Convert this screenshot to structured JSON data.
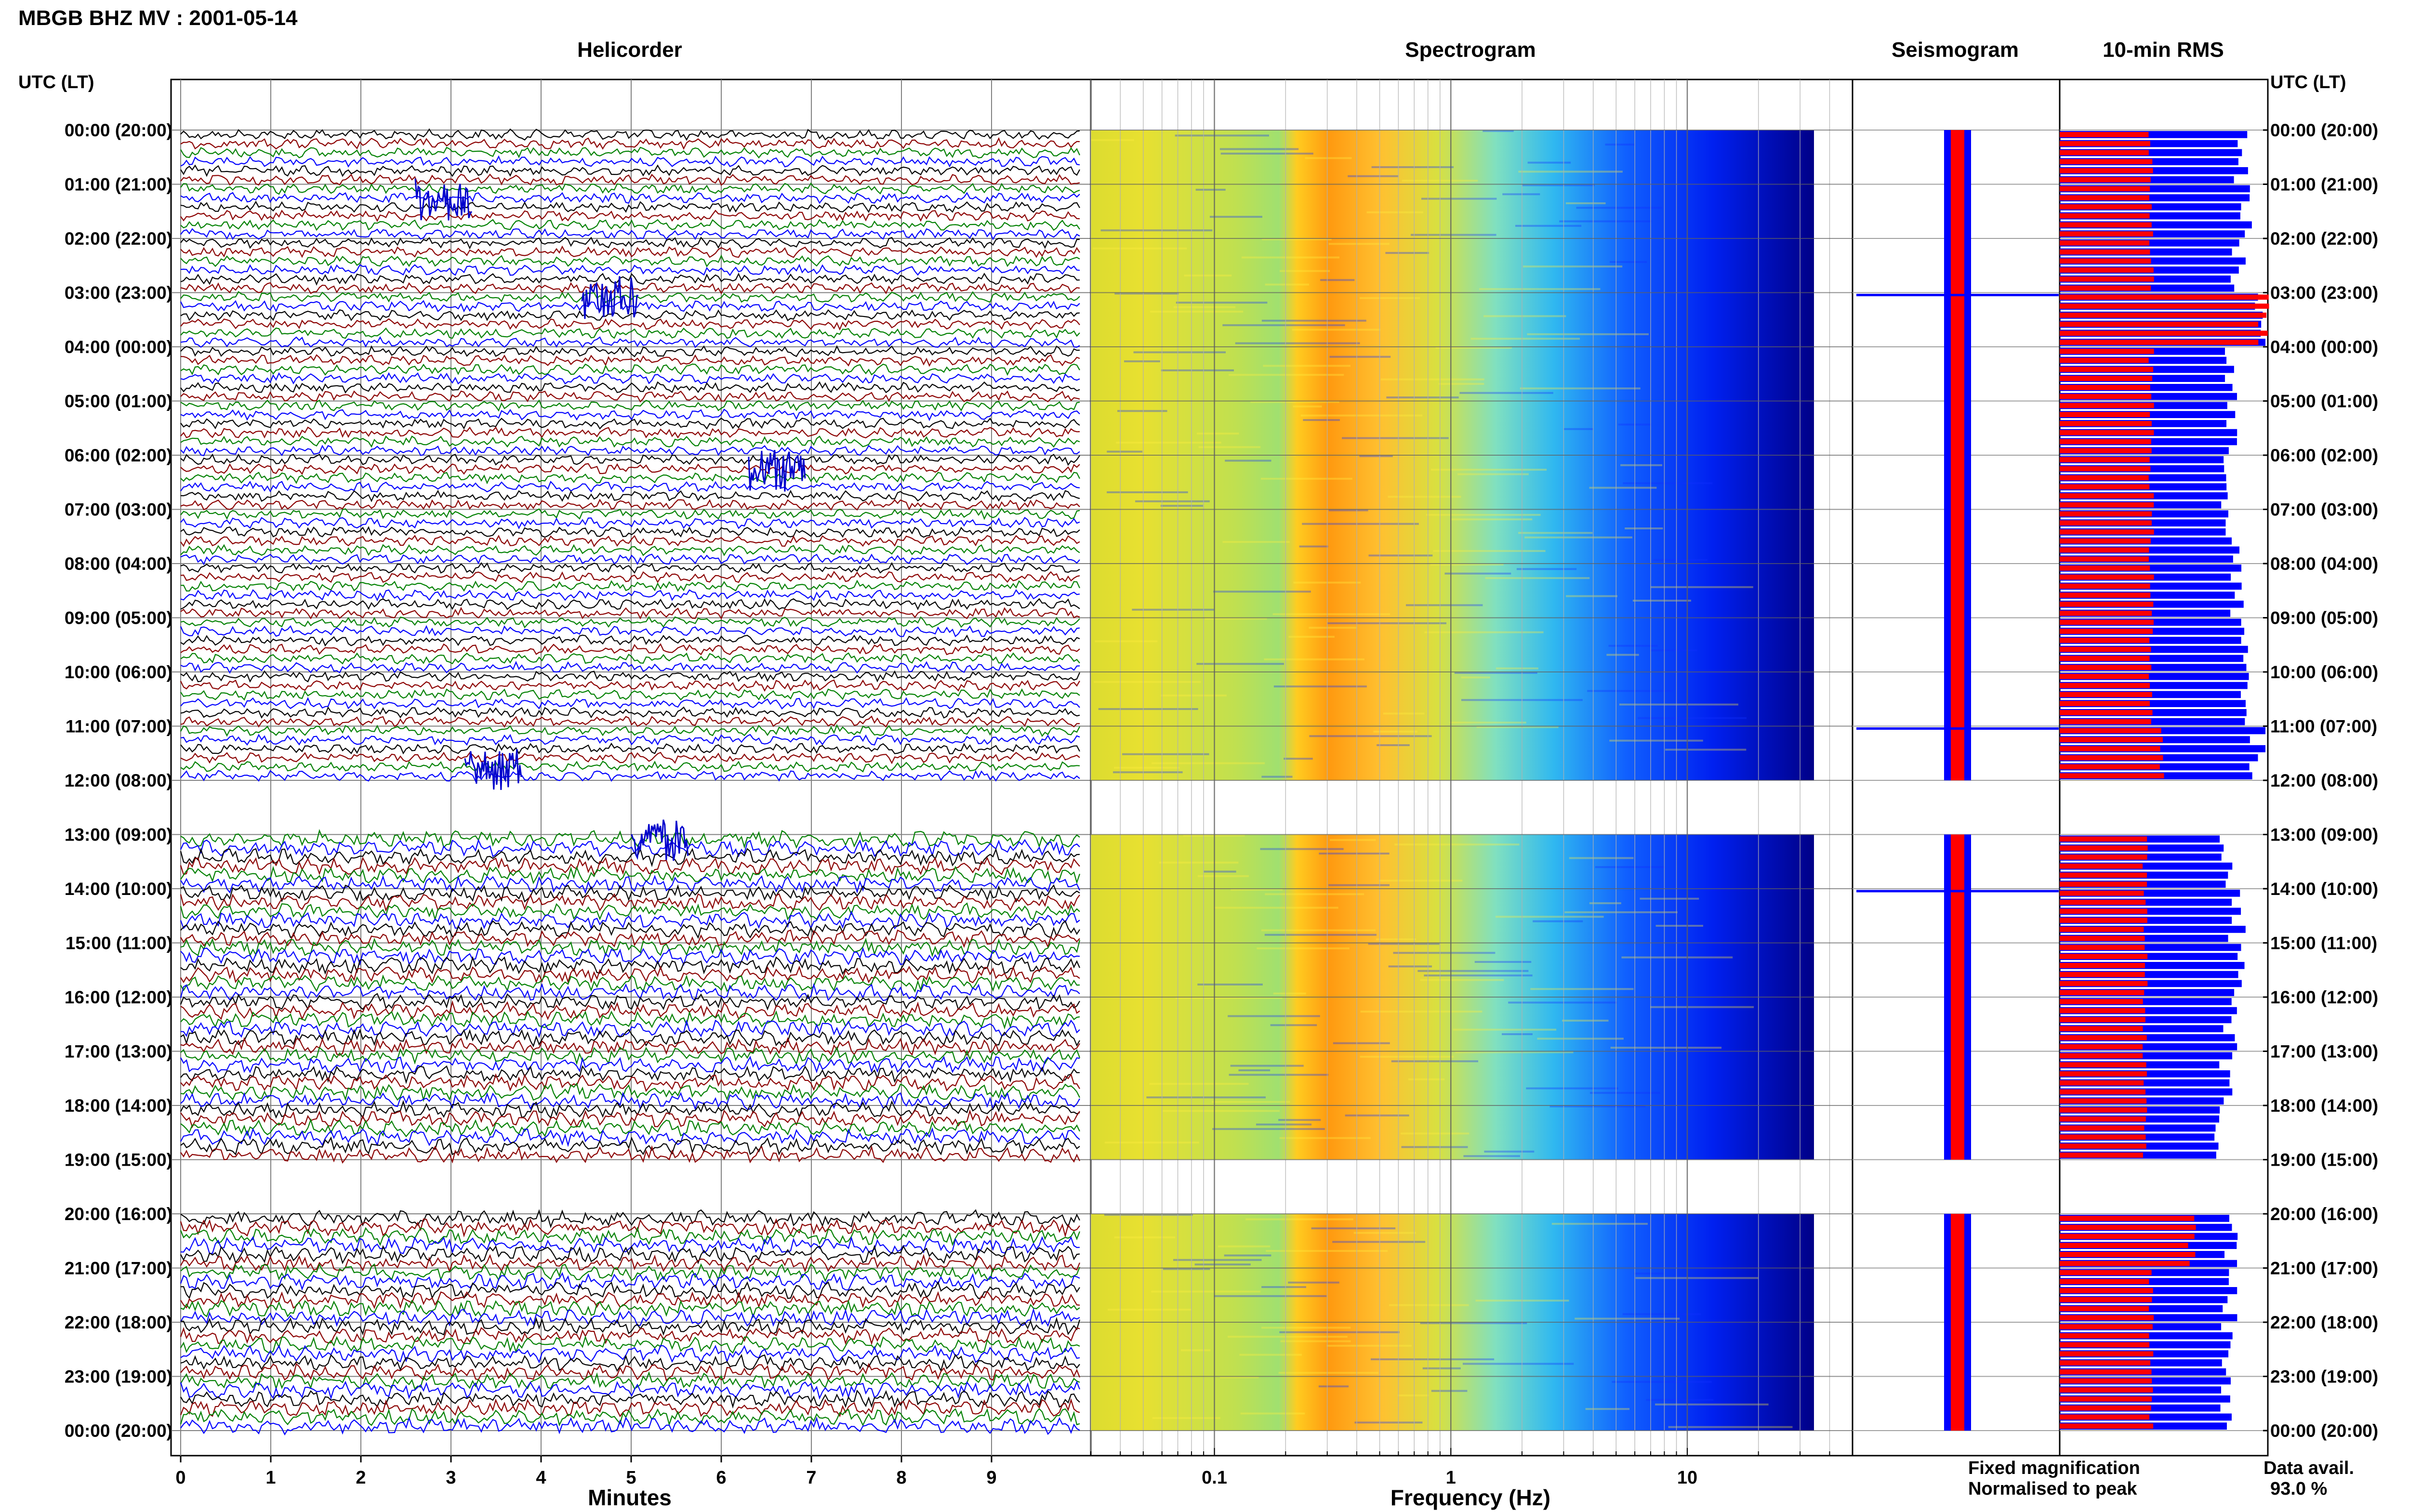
{
  "title": "MBGB BHZ MV : 2001-05-14",
  "panels": {
    "helicorder": "Helicorder",
    "spectrogram": "Spectrogram",
    "seismogram": "Seismogram",
    "rms": "10-min RMS"
  },
  "axis_header": "UTC (LT)",
  "time_labels": [
    "00:00 (20:00)",
    "01:00 (21:00)",
    "02:00 (22:00)",
    "03:00 (23:00)",
    "04:00 (00:00)",
    "05:00 (01:00)",
    "06:00 (02:00)",
    "07:00 (03:00)",
    "08:00 (04:00)",
    "09:00 (05:00)",
    "10:00 (06:00)",
    "11:00 (07:00)",
    "12:00 (08:00)",
    "13:00 (09:00)",
    "14:00 (10:00)",
    "15:00 (11:00)",
    "16:00 (12:00)",
    "17:00 (13:00)",
    "18:00 (14:00)",
    "19:00 (15:00)",
    "20:00 (16:00)",
    "21:00 (17:00)",
    "22:00 (18:00)",
    "23:00 (19:00)",
    "00:00 (20:00)"
  ],
  "legend": {
    "fixed": "Fixed magnification",
    "normalised": "Normalised to peak",
    "fixed_color": "#0000ff",
    "normalised_color": "#ff0000"
  },
  "data_avail_label": "Data avail.",
  "data_avail_value": "93.0 %",
  "chart_data": [
    {
      "type": "line",
      "title": "Helicorder",
      "xlabel": "Minutes",
      "x_ticks": [
        "0",
        "1",
        "2",
        "3",
        "4",
        "5",
        "6",
        "7",
        "8",
        "9"
      ],
      "xlim": [
        0,
        10
      ],
      "ylim_hours_utc": [
        0,
        24
      ],
      "trace_colors": [
        "#000000",
        "#8b0000",
        "#008000",
        "#0000ff"
      ],
      "traces_per_hour": 6,
      "data_gaps_utc_hours": [
        [
          12.0,
          13.0
        ],
        [
          19.0,
          20.0
        ]
      ],
      "notable_events_utc_hours": [
        1.2,
        3.0,
        6.2,
        11.7,
        13.0
      ]
    },
    {
      "type": "heatmap",
      "title": "Spectrogram",
      "xlabel": "Frequency (Hz)",
      "x_scale": "log",
      "x_ticks": [
        "0.1",
        "1",
        "10"
      ],
      "xlim_hz": [
        0.03,
        50
      ],
      "colormap": [
        "#00008b",
        "#0000ff",
        "#00bfff",
        "#7fffd4",
        "#ffff00",
        "#ff8c00",
        "#ff0000"
      ],
      "dominant_band_hz": [
        0.2,
        0.35
      ],
      "data_gaps_utc_hours": [
        [
          12.0,
          13.0
        ],
        [
          19.0,
          20.0
        ]
      ]
    },
    {
      "type": "line",
      "title": "Seismogram",
      "series": [
        {
          "name": "Fixed magnification",
          "color": "#0000ff"
        },
        {
          "name": "Normalised to peak",
          "color": "#ff0000"
        }
      ],
      "spikes_utc_hours": [
        3.0,
        11.0,
        14.0
      ]
    },
    {
      "type": "bar",
      "title": "10-min RMS",
      "orientation": "horizontal",
      "categories_utc_hours": [
        0.5,
        1.5,
        2.5,
        3.5,
        4.5,
        5.5,
        6.5,
        7.5,
        8.5,
        9.5,
        10.5,
        11.5,
        13.5,
        14.5,
        15.5,
        16.5,
        17.5,
        18.5,
        20.5,
        21.5,
        22.5,
        23.5
      ],
      "series": [
        {
          "name": "Fixed magnification",
          "color": "#0000ff",
          "values": [
            0.9,
            0.92,
            0.88,
            1.0,
            0.85,
            0.84,
            0.84,
            0.86,
            0.87,
            0.9,
            0.92,
            0.98,
            0.82,
            0.88,
            0.9,
            0.85,
            0.83,
            0.8,
            0.85,
            0.84,
            0.82,
            0.82
          ]
        },
        {
          "name": "Normalised to peak",
          "color": "#ff0000",
          "values": [
            0.45,
            0.45,
            0.45,
            1.0,
            0.45,
            0.45,
            0.45,
            0.45,
            0.45,
            0.45,
            0.45,
            0.5,
            0.42,
            0.42,
            0.42,
            0.42,
            0.42,
            0.42,
            0.65,
            0.45,
            0.45,
            0.45
          ]
        }
      ]
    }
  ]
}
